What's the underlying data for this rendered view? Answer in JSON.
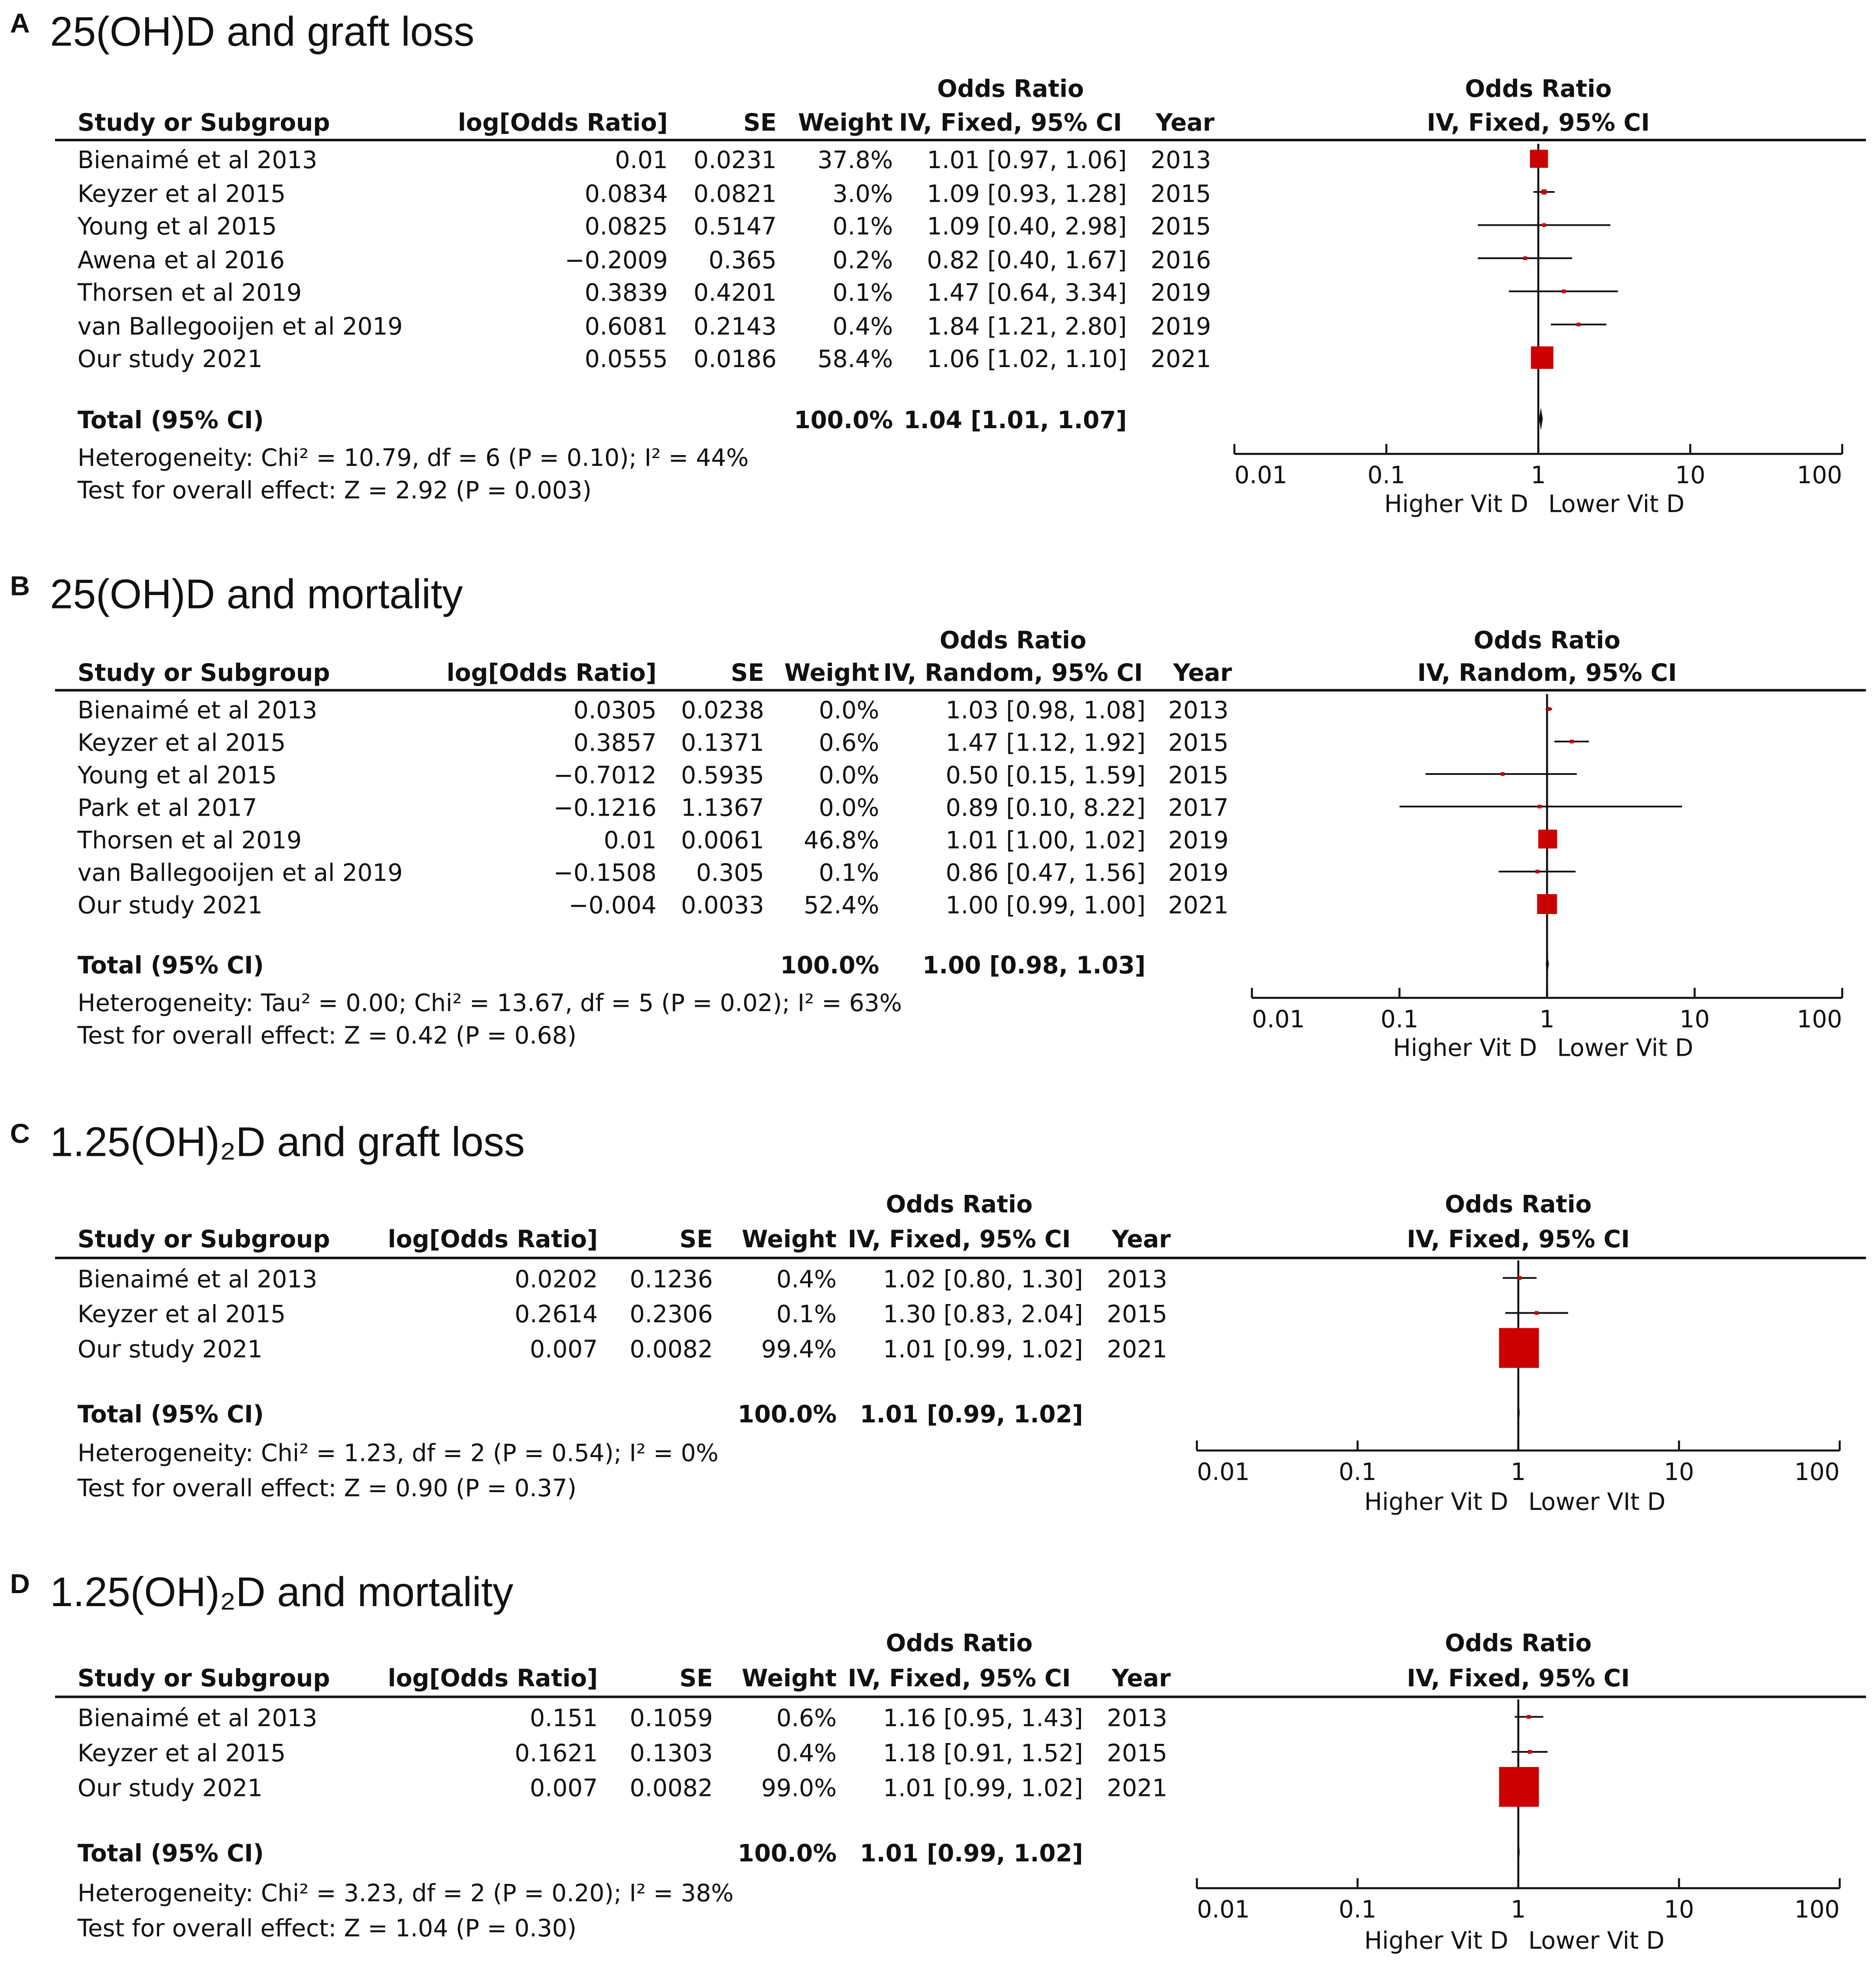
{
  "colors": {
    "square": "#cc0000",
    "line": "#111111",
    "diamond": "#111111"
  },
  "chart_data": [
    {
      "type": "forest",
      "panel_label": "A",
      "title": "25(OH)D and graft loss",
      "columns": {
        "study": "Study or Subgroup",
        "log_or": "log[Odds Ratio]",
        "se": "SE",
        "weight": "Weight",
        "or_group": "Odds Ratio",
        "or_method": "IV, Fixed, 95% CI",
        "year": "Year"
      },
      "plot_header": {
        "group": "Odds Ratio",
        "method": "IV, Fixed, 95% CI"
      },
      "studies": [
        {
          "name": "Bienaimé et al 2013",
          "log_or": "0.01",
          "se": "0.0231",
          "weight": "37.8%",
          "ci_text": "1.01 [0.97, 1.06]",
          "or": 1.01,
          "lo": 0.97,
          "hi": 1.06,
          "year": "2013"
        },
        {
          "name": "Keyzer et al 2015",
          "log_or": "0.0834",
          "se": "0.0821",
          "weight": "3.0%",
          "ci_text": "1.09 [0.93, 1.28]",
          "or": 1.09,
          "lo": 0.93,
          "hi": 1.28,
          "year": "2015"
        },
        {
          "name": "Young et al 2015",
          "log_or": "0.0825",
          "se": "0.5147",
          "weight": "0.1%",
          "ci_text": "1.09 [0.40, 2.98]",
          "or": 1.09,
          "lo": 0.4,
          "hi": 2.98,
          "year": "2015"
        },
        {
          "name": "Awena et al 2016",
          "log_or": "−0.2009",
          "se": "0.365",
          "weight": "0.2%",
          "ci_text": "0.82 [0.40, 1.67]",
          "or": 0.82,
          "lo": 0.4,
          "hi": 1.67,
          "year": "2016"
        },
        {
          "name": "Thorsen et al 2019",
          "log_or": "0.3839",
          "se": "0.4201",
          "weight": "0.1%",
          "ci_text": "1.47 [0.64, 3.34]",
          "or": 1.47,
          "lo": 0.64,
          "hi": 3.34,
          "year": "2019"
        },
        {
          "name": "van Ballegooijen et al  2019",
          "log_or": "0.6081",
          "se": "0.2143",
          "weight": "0.4%",
          "ci_text": "1.84 [1.21, 2.80]",
          "or": 1.84,
          "lo": 1.21,
          "hi": 2.8,
          "year": "2019"
        },
        {
          "name": "Our study 2021",
          "log_or": "0.0555",
          "se": "0.0186",
          "weight": "58.4%",
          "ci_text": "1.06 [1.02, 1.10]",
          "or": 1.06,
          "lo": 1.02,
          "hi": 1.1,
          "year": "2021"
        }
      ],
      "total": {
        "label": "Total (95% CI)",
        "weight": "100.0%",
        "ci_text": "1.04 [1.01, 1.07]",
        "or": 1.04,
        "lo": 1.01,
        "hi": 1.07
      },
      "heterogeneity": "Heterogeneity: Chi² = 10.79, df = 6 (P = 0.10); I² = 44%",
      "overall_effect": "Test for overall effect: Z = 2.92 (P = 0.003)",
      "x_scale": "log",
      "xlim": [
        0.01,
        100
      ],
      "x_ticks": [
        "0.01",
        "0.1",
        "1",
        "10",
        "100"
      ],
      "x_labels": {
        "left": "Higher Vit D",
        "right": "Lower Vit D"
      }
    },
    {
      "type": "forest",
      "panel_label": "B",
      "title": "25(OH)D and mortality",
      "columns": {
        "study": "Study or Subgroup",
        "log_or": "log[Odds Ratio]",
        "se": "SE",
        "weight": "Weight",
        "or_group": "Odds Ratio",
        "or_method": "IV, Random, 95% CI",
        "year": "Year"
      },
      "plot_header": {
        "group": "Odds Ratio",
        "method": "IV, Random, 95% CI"
      },
      "studies": [
        {
          "name": "Bienaimé et al 2013",
          "log_or": "0.0305",
          "se": "0.0238",
          "weight": "0.0%",
          "ci_text": "1.03 [0.98, 1.08]",
          "or": 1.03,
          "lo": 0.98,
          "hi": 1.08,
          "year": "2013"
        },
        {
          "name": "Keyzer et al 2015",
          "log_or": "0.3857",
          "se": "0.1371",
          "weight": "0.6%",
          "ci_text": "1.47 [1.12, 1.92]",
          "or": 1.47,
          "lo": 1.12,
          "hi": 1.92,
          "year": "2015"
        },
        {
          "name": "Young et al 2015",
          "log_or": "−0.7012",
          "se": "0.5935",
          "weight": "0.0%",
          "ci_text": "0.50 [0.15, 1.59]",
          "or": 0.5,
          "lo": 0.15,
          "hi": 1.59,
          "year": "2015"
        },
        {
          "name": "Park et al 2017",
          "log_or": "−0.1216",
          "se": "1.1367",
          "weight": "0.0%",
          "ci_text": "0.89 [0.10, 8.22]",
          "or": 0.89,
          "lo": 0.1,
          "hi": 8.22,
          "year": "2017"
        },
        {
          "name": "Thorsen et al 2019",
          "log_or": "0.01",
          "se": "0.0061",
          "weight": "46.8%",
          "ci_text": "1.01 [1.00, 1.02]",
          "or": 1.01,
          "lo": 1.0,
          "hi": 1.02,
          "year": "2019"
        },
        {
          "name": "van Ballegooijen et al  2019",
          "log_or": "−0.1508",
          "se": "0.305",
          "weight": "0.1%",
          "ci_text": "0.86 [0.47, 1.56]",
          "or": 0.86,
          "lo": 0.47,
          "hi": 1.56,
          "year": "2019"
        },
        {
          "name": "Our study 2021",
          "log_or": "−0.004",
          "se": "0.0033",
          "weight": "52.4%",
          "ci_text": "1.00 [0.99, 1.00]",
          "or": 1.0,
          "lo": 0.99,
          "hi": 1.0,
          "year": "2021"
        }
      ],
      "total": {
        "label": "Total (95% CI)",
        "weight": "100.0%",
        "ci_text": "1.00 [0.98, 1.03]",
        "or": 1.0,
        "lo": 0.98,
        "hi": 1.03
      },
      "heterogeneity": "Heterogeneity: Tau² = 0.00; Chi² = 13.67, df = 5 (P = 0.02); I² = 63%",
      "overall_effect": "Test for overall effect: Z = 0.42 (P = 0.68)",
      "x_scale": "log",
      "xlim": [
        0.01,
        100
      ],
      "x_ticks": [
        "0.01",
        "0.1",
        "1",
        "10",
        "100"
      ],
      "x_labels": {
        "left": "Higher Vit D",
        "right": "Lower Vit D"
      }
    },
    {
      "type": "forest",
      "panel_label": "C",
      "title": "1.25(OH)₂D and graft loss",
      "columns": {
        "study": "Study or Subgroup",
        "log_or": "log[Odds Ratio]",
        "se": "SE",
        "weight": "Weight",
        "or_group": "Odds Ratio",
        "or_method": "IV, Fixed, 95% CI",
        "year": "Year"
      },
      "plot_header": {
        "group": "Odds Ratio",
        "method": "IV, Fixed, 95% CI"
      },
      "studies": [
        {
          "name": "Bienaimé et al 2013",
          "log_or": "0.0202",
          "se": "0.1236",
          "weight": "0.4%",
          "ci_text": "1.02 [0.80, 1.30]",
          "or": 1.02,
          "lo": 0.8,
          "hi": 1.3,
          "year": "2013"
        },
        {
          "name": "Keyzer et al 2015",
          "log_or": "0.2614",
          "se": "0.2306",
          "weight": "0.1%",
          "ci_text": "1.30 [0.83, 2.04]",
          "or": 1.3,
          "lo": 0.83,
          "hi": 2.04,
          "year": "2015"
        },
        {
          "name": "Our study 2021",
          "log_or": "0.007",
          "se": "0.0082",
          "weight": "99.4%",
          "ci_text": "1.01 [0.99, 1.02]",
          "or": 1.01,
          "lo": 0.99,
          "hi": 1.02,
          "year": "2021"
        }
      ],
      "total": {
        "label": "Total (95% CI)",
        "weight": "100.0%",
        "ci_text": "1.01 [0.99, 1.02]",
        "or": 1.01,
        "lo": 0.99,
        "hi": 1.02
      },
      "heterogeneity": "Heterogeneity: Chi² = 1.23, df = 2 (P = 0.54); I² = 0%",
      "overall_effect": "Test for overall effect: Z = 0.90 (P = 0.37)",
      "x_scale": "log",
      "xlim": [
        0.01,
        100
      ],
      "x_ticks": [
        "0.01",
        "0.1",
        "1",
        "10",
        "100"
      ],
      "x_labels": {
        "left": "Higher Vit D",
        "right": "Lower VIt D"
      }
    },
    {
      "type": "forest",
      "panel_label": "D",
      "title": "1.25(OH)₂D and mortality",
      "columns": {
        "study": "Study or Subgroup",
        "log_or": "log[Odds Ratio]",
        "se": "SE",
        "weight": "Weight",
        "or_group": "Odds Ratio",
        "or_method": "IV, Fixed, 95% CI",
        "year": "Year"
      },
      "plot_header": {
        "group": "Odds Ratio",
        "method": "IV, Fixed, 95% CI"
      },
      "studies": [
        {
          "name": "Bienaimé et al 2013",
          "log_or": "0.151",
          "se": "0.1059",
          "weight": "0.6%",
          "ci_text": "1.16 [0.95, 1.43]",
          "or": 1.16,
          "lo": 0.95,
          "hi": 1.43,
          "year": "2013"
        },
        {
          "name": "Keyzer et al 2015",
          "log_or": "0.1621",
          "se": "0.1303",
          "weight": "0.4%",
          "ci_text": "1.18 [0.91, 1.52]",
          "or": 1.18,
          "lo": 0.91,
          "hi": 1.52,
          "year": "2015"
        },
        {
          "name": "Our study 2021",
          "log_or": "0.007",
          "se": "0.0082",
          "weight": "99.0%",
          "ci_text": "1.01 [0.99, 1.02]",
          "or": 1.01,
          "lo": 0.99,
          "hi": 1.02,
          "year": "2021"
        }
      ],
      "total": {
        "label": "Total (95% CI)",
        "weight": "100.0%",
        "ci_text": "1.01 [0.99, 1.02]",
        "or": 1.01,
        "lo": 0.99,
        "hi": 1.02
      },
      "heterogeneity": "Heterogeneity: Chi² = 3.23, df = 2 (P = 0.20); I² = 38%",
      "overall_effect": "Test for overall effect: Z = 1.04 (P = 0.30)",
      "x_scale": "log",
      "xlim": [
        0.01,
        100
      ],
      "x_ticks": [
        "0.01",
        "0.1",
        "1",
        "10",
        "100"
      ],
      "x_labels": {
        "left": "Higher Vit D",
        "right": "Lower Vit D"
      }
    }
  ]
}
